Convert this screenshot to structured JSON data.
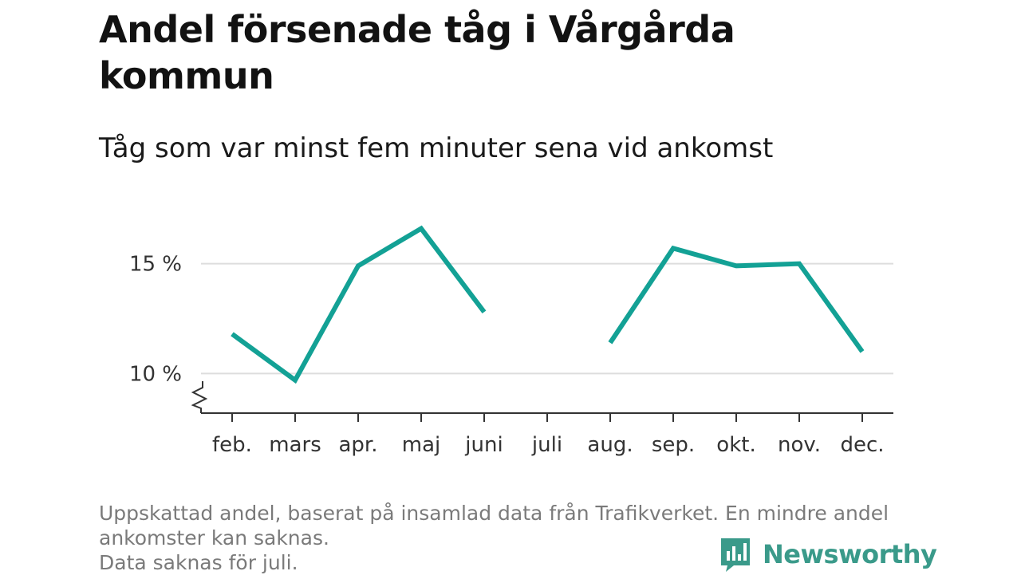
{
  "title": "Andel försenade tåg i Vårgårda kommun",
  "subtitle": "Tåg som var minst fem minuter sena vid ankomst",
  "footnote": {
    "line1": "Uppskattad andel, baserat på insamlad data från Trafikverket. En mindre andel ankomster kan saknas.",
    "line2": "Data saknas för juli."
  },
  "brand": {
    "name": "Newsworthy",
    "color": "#3a9a8a",
    "icon": "bar-chart-speech-bubble-icon"
  },
  "colors": {
    "line": "#13a195",
    "grid": "#dddddd",
    "axis": "#333333"
  },
  "chart_data": {
    "type": "line",
    "categories": [
      "feb.",
      "mars",
      "apr.",
      "maj",
      "juni",
      "juli",
      "aug.",
      "sep.",
      "okt.",
      "nov.",
      "dec."
    ],
    "series": [
      {
        "values": [
          11.8,
          9.7,
          14.9,
          16.6,
          12.8,
          null,
          11.4,
          15.7,
          14.9,
          15.0,
          11.0
        ]
      }
    ],
    "ylim": [
      8.2,
      17.2
    ],
    "yticks": [
      10,
      15
    ],
    "ytick_labels": [
      "10 %",
      "15 %"
    ],
    "y_axis_break": true,
    "grid": true,
    "xlabel": "",
    "ylabel": ""
  }
}
